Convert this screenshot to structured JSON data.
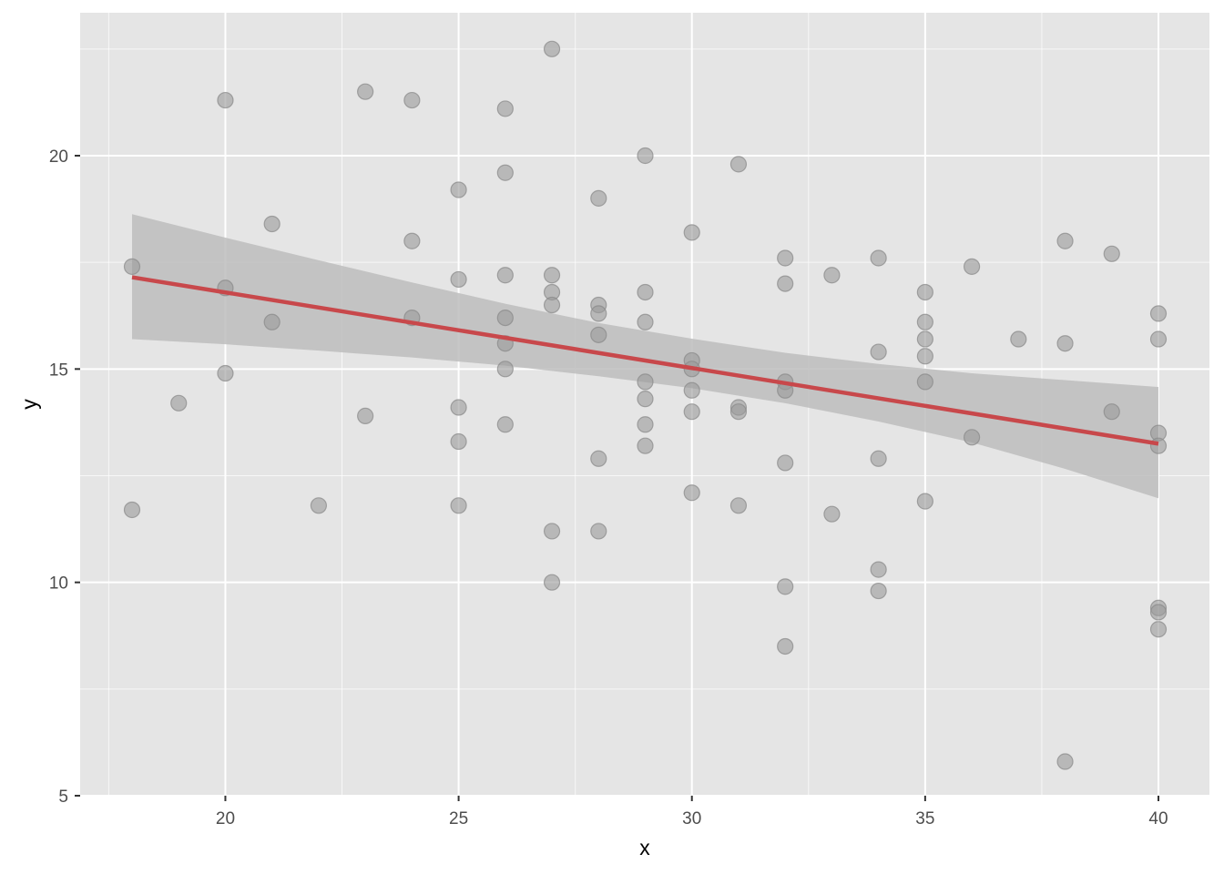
{
  "chart_data": {
    "type": "scatter",
    "title": "",
    "xlabel": "x",
    "ylabel": "y",
    "xlim": [
      16.75,
      41.1
    ],
    "ylim": [
      5,
      23.5
    ],
    "x_ticks": [
      20,
      25,
      30,
      35,
      40
    ],
    "y_ticks": [
      5,
      10,
      15,
      20
    ],
    "x_tick_labels": [
      "20",
      "25",
      "30",
      "35",
      "40"
    ],
    "y_tick_labels": [
      "5",
      "10",
      "15",
      "20"
    ],
    "grid": true,
    "legend": "none",
    "colors": {
      "panel": "#e5e5e5",
      "grid": "#ffffff",
      "points": "#999999",
      "fit_line": "#c8484b",
      "confidence_band": "#bdbdbd"
    },
    "points": [
      [
        18,
        17.4
      ],
      [
        18,
        11.7
      ],
      [
        19,
        14.2
      ],
      [
        20,
        21.3
      ],
      [
        20,
        16.9
      ],
      [
        20,
        14.9
      ],
      [
        21,
        18.4
      ],
      [
        21,
        16.1
      ],
      [
        22,
        11.8
      ],
      [
        23,
        21.5
      ],
      [
        23,
        13.9
      ],
      [
        24,
        21.3
      ],
      [
        24,
        18.0
      ],
      [
        24,
        16.2
      ],
      [
        25,
        19.2
      ],
      [
        25,
        17.1
      ],
      [
        25,
        14.1
      ],
      [
        25,
        13.3
      ],
      [
        25,
        11.8
      ],
      [
        26,
        21.1
      ],
      [
        26,
        19.6
      ],
      [
        26,
        17.2
      ],
      [
        26,
        16.2
      ],
      [
        26,
        15.6
      ],
      [
        26,
        15.0
      ],
      [
        26,
        13.7
      ],
      [
        27,
        22.5
      ],
      [
        27,
        17.2
      ],
      [
        27,
        16.8
      ],
      [
        27,
        16.5
      ],
      [
        27,
        11.2
      ],
      [
        27,
        10.0
      ],
      [
        28,
        19.0
      ],
      [
        28,
        16.5
      ],
      [
        28,
        16.3
      ],
      [
        28,
        15.8
      ],
      [
        28,
        12.9
      ],
      [
        28,
        11.2
      ],
      [
        29,
        20.0
      ],
      [
        29,
        16.8
      ],
      [
        29,
        16.1
      ],
      [
        29,
        14.7
      ],
      [
        29,
        14.3
      ],
      [
        29,
        13.7
      ],
      [
        29,
        13.2
      ],
      [
        30,
        18.2
      ],
      [
        30,
        15.2
      ],
      [
        30,
        15.0
      ],
      [
        30,
        14.5
      ],
      [
        30,
        14.0
      ],
      [
        30,
        12.1
      ],
      [
        31,
        19.8
      ],
      [
        31,
        14.1
      ],
      [
        31,
        14.0
      ],
      [
        31,
        11.8
      ],
      [
        32,
        17.6
      ],
      [
        32,
        17.0
      ],
      [
        32,
        14.7
      ],
      [
        32,
        14.5
      ],
      [
        32,
        12.8
      ],
      [
        32,
        9.9
      ],
      [
        32,
        8.5
      ],
      [
        33,
        17.2
      ],
      [
        33,
        11.6
      ],
      [
        34,
        17.6
      ],
      [
        34,
        15.4
      ],
      [
        34,
        12.9
      ],
      [
        34,
        10.3
      ],
      [
        34,
        9.8
      ],
      [
        35,
        16.8
      ],
      [
        35,
        16.1
      ],
      [
        35,
        15.7
      ],
      [
        35,
        15.3
      ],
      [
        35,
        14.7
      ],
      [
        35,
        11.9
      ],
      [
        36,
        17.4
      ],
      [
        36,
        13.4
      ],
      [
        37,
        15.7
      ],
      [
        38,
        18.0
      ],
      [
        38,
        15.6
      ],
      [
        38,
        5.8
      ],
      [
        39,
        17.7
      ],
      [
        39,
        14.0
      ],
      [
        40,
        16.3
      ],
      [
        40,
        15.7
      ],
      [
        40,
        13.5
      ],
      [
        40,
        13.2
      ],
      [
        40,
        9.4
      ],
      [
        40,
        9.3
      ],
      [
        40,
        8.9
      ]
    ],
    "fit_line": {
      "x": [
        18,
        40
      ],
      "y": [
        17.15,
        13.25
      ]
    },
    "confidence_band": {
      "x": [
        18,
        20,
        22,
        24,
        26,
        28,
        30,
        32,
        34,
        36,
        38,
        40
      ],
      "lower": [
        15.7,
        15.58,
        15.43,
        15.27,
        15.08,
        14.83,
        14.55,
        14.2,
        13.77,
        13.28,
        12.66,
        11.97
      ],
      "upper": [
        18.63,
        18.08,
        17.55,
        17.03,
        16.53,
        16.08,
        15.71,
        15.38,
        15.12,
        14.9,
        14.74,
        14.58
      ]
    }
  }
}
